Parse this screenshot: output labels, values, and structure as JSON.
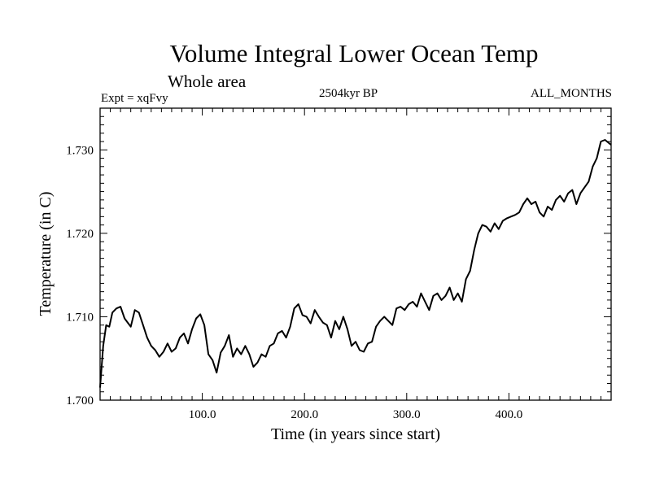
{
  "header": {
    "title": "Volume Integral Lower Ocean Temp",
    "subtitle": "Whole area",
    "experiment": "Expt = xqFvy",
    "period": "2504kyr BP",
    "months": "ALL_MONTHS"
  },
  "colors": {
    "line": "#000000",
    "axes": "#000000",
    "background": "#ffffff"
  },
  "chart_data": {
    "type": "line",
    "title": "Volume Integral Lower Ocean Temp",
    "xlabel": "Time (in years since start)",
    "ylabel": "Temperature (in C)",
    "xlim": [
      0,
      500
    ],
    "ylim": [
      1.7,
      1.735
    ],
    "x_ticks": [
      100,
      200,
      300,
      400
    ],
    "x_tick_labels": [
      "100.0",
      "200.0",
      "300.0",
      "400.0"
    ],
    "y_ticks": [
      1.7,
      1.71,
      1.72,
      1.73
    ],
    "y_tick_labels": [
      "1.700",
      "1.710",
      "1.720",
      "1.730"
    ],
    "grid": false,
    "series": [
      {
        "name": "Volume Integral Lower Ocean Temp",
        "x": [
          0,
          3,
          6,
          9,
          12,
          16,
          20,
          24,
          27,
          30,
          34,
          38,
          42,
          46,
          50,
          54,
          58,
          62,
          66,
          70,
          74,
          78,
          82,
          86,
          90,
          94,
          98,
          102,
          106,
          110,
          114,
          118,
          122,
          126,
          130,
          134,
          138,
          142,
          146,
          150,
          154,
          158,
          162,
          166,
          170,
          174,
          178,
          182,
          186,
          190,
          194,
          198,
          202,
          206,
          210,
          214,
          218,
          222,
          226,
          230,
          234,
          238,
          242,
          246,
          250,
          254,
          258,
          262,
          266,
          270,
          274,
          278,
          282,
          286,
          290,
          294,
          298,
          302,
          306,
          310,
          314,
          318,
          322,
          326,
          330,
          334,
          338,
          342,
          346,
          350,
          354,
          358,
          362,
          366,
          370,
          374,
          378,
          382,
          386,
          390,
          394,
          398,
          402,
          406,
          410,
          414,
          418,
          422,
          426,
          430,
          434,
          438,
          442,
          446,
          450,
          454,
          458,
          462,
          466,
          470,
          474,
          478,
          482,
          486,
          490,
          494,
          498,
          500
        ],
        "y": [
          1.7015,
          1.7065,
          1.709,
          1.7088,
          1.7105,
          1.711,
          1.7112,
          1.7098,
          1.7093,
          1.7088,
          1.7108,
          1.7105,
          1.709,
          1.7075,
          1.7065,
          1.706,
          1.7052,
          1.7058,
          1.7068,
          1.7058,
          1.7062,
          1.7075,
          1.708,
          1.7068,
          1.7085,
          1.7098,
          1.7103,
          1.709,
          1.7055,
          1.7048,
          1.7033,
          1.7057,
          1.7065,
          1.7078,
          1.7052,
          1.7062,
          1.7055,
          1.7065,
          1.7055,
          1.704,
          1.7045,
          1.7055,
          1.7052,
          1.7065,
          1.7068,
          1.708,
          1.7083,
          1.7075,
          1.7088,
          1.711,
          1.7115,
          1.7102,
          1.71,
          1.7092,
          1.7108,
          1.71,
          1.7093,
          1.709,
          1.7075,
          1.7095,
          1.7085,
          1.71,
          1.7085,
          1.7065,
          1.707,
          1.706,
          1.7058,
          1.7068,
          1.707,
          1.7088,
          1.7095,
          1.71,
          1.7095,
          1.709,
          1.711,
          1.7112,
          1.7108,
          1.7115,
          1.7118,
          1.7112,
          1.7128,
          1.7118,
          1.7108,
          1.7125,
          1.7128,
          1.712,
          1.7125,
          1.7135,
          1.712,
          1.7128,
          1.7118,
          1.7145,
          1.7155,
          1.718,
          1.72,
          1.721,
          1.7208,
          1.7202,
          1.7212,
          1.7205,
          1.7215,
          1.7218,
          1.722,
          1.7222,
          1.7225,
          1.7235,
          1.7242,
          1.7235,
          1.7238,
          1.7225,
          1.722,
          1.7232,
          1.7228,
          1.724,
          1.7245,
          1.7238,
          1.7248,
          1.7252,
          1.7235,
          1.7248,
          1.7255,
          1.7262,
          1.728,
          1.729,
          1.731,
          1.7312,
          1.7308,
          1.7306
        ]
      }
    ]
  }
}
